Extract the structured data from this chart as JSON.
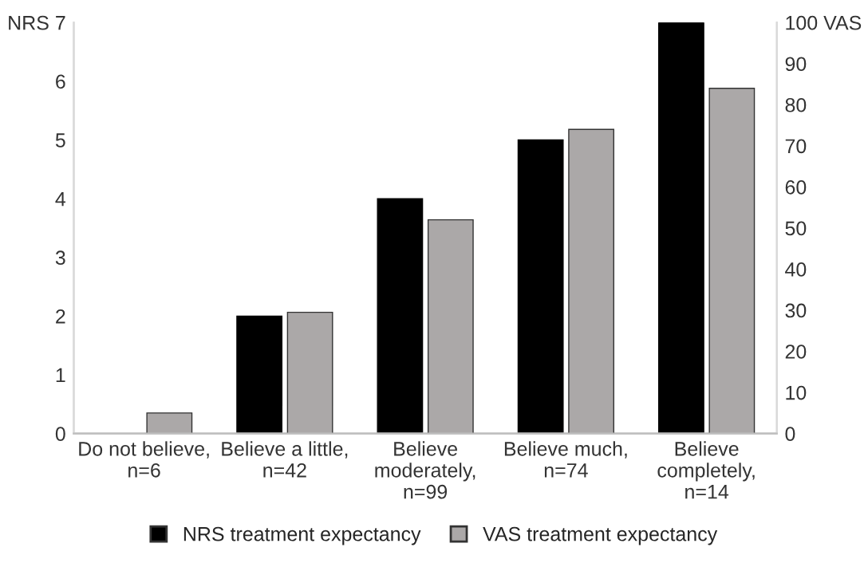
{
  "chart_data": {
    "type": "bar",
    "categories": [
      "Do not believe,\nn=6",
      "Believe a little,\nn=42",
      "Believe\nmoderately,\nn=99",
      "Believe much,\nn=74",
      "Believe\ncompletely,\nn=14"
    ],
    "series": [
      {
        "name": "NRS treatment expectancy",
        "color": "#000000",
        "values": [
          0,
          2.0,
          4.0,
          5.0,
          7.0
        ]
      },
      {
        "name": "VAS treatment expectancy",
        "color": "#aba8a8",
        "values": [
          5,
          29.5,
          52,
          74,
          84
        ],
        "axis": "y2"
      }
    ],
    "ylim": [
      0,
      7
    ],
    "yticks": [
      0,
      1,
      2,
      3,
      4,
      5,
      6,
      {
        "value": 7,
        "label": "NRS 7"
      }
    ],
    "y2lim": [
      0,
      100
    ],
    "y2ticks": [
      0,
      10,
      20,
      30,
      40,
      50,
      60,
      70,
      80,
      90,
      {
        "value": 100,
        "label": "100 VAS"
      }
    ],
    "grid": false,
    "legend": "bottom"
  }
}
